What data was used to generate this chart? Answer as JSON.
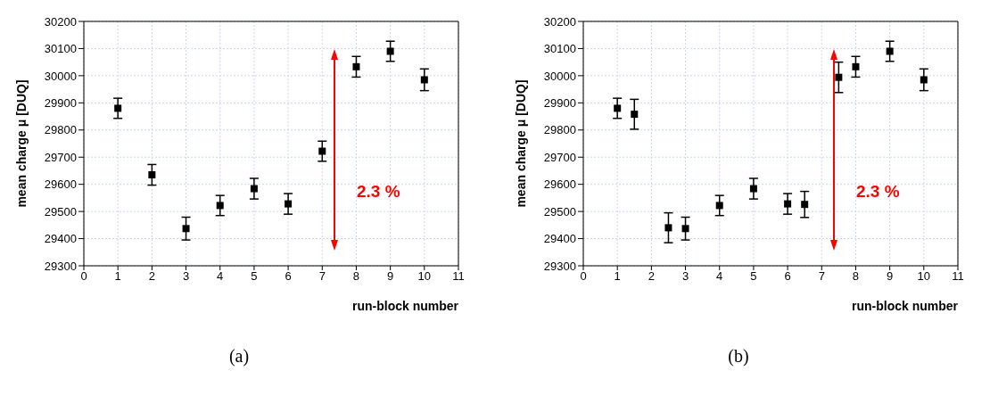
{
  "chart_data": [
    {
      "type": "scatter",
      "xlabel": "run-block number",
      "ylabel": "mean charge μ [DUQ]",
      "xlim": [
        0,
        11
      ],
      "xticks": [
        0,
        1,
        2,
        3,
        4,
        5,
        6,
        7,
        8,
        9,
        10,
        11
      ],
      "ylim": [
        29300,
        30200
      ],
      "yticks": [
        29300,
        29400,
        29500,
        29600,
        29700,
        29800,
        29900,
        30000,
        30100,
        30200
      ],
      "grid": true,
      "marker": "square",
      "series": [
        {
          "color": "#000000",
          "x": [
            1,
            2,
            3,
            4,
            5,
            6,
            7,
            8,
            9,
            10
          ],
          "values": [
            29880,
            29635,
            29437,
            29522,
            29584,
            29528,
            29722,
            30033,
            30090,
            29985
          ],
          "errors": [
            37,
            38,
            42,
            37,
            38,
            38,
            37,
            38,
            37,
            40
          ]
        }
      ],
      "annotations": [
        "2.3 %",
        "(a)"
      ]
    },
    {
      "type": "scatter",
      "xlabel": "run-block number",
      "ylabel": "mean charge μ [DUQ]",
      "xlim": [
        0,
        11
      ],
      "xticks": [
        0,
        1,
        2,
        3,
        4,
        5,
        6,
        7,
        8,
        9,
        10,
        11
      ],
      "ylim": [
        29300,
        30200
      ],
      "yticks": [
        29300,
        29400,
        29500,
        29600,
        29700,
        29800,
        29900,
        30000,
        30100,
        30200
      ],
      "grid": true,
      "marker": "square",
      "series": [
        {
          "color": "#000000",
          "x": [
            1,
            1.5,
            2.5,
            3,
            4,
            5,
            6,
            6.5,
            7.5,
            8,
            9,
            10
          ],
          "values": [
            29880,
            29858,
            29440,
            29437,
            29522,
            29584,
            29528,
            29526,
            29994,
            30033,
            30090,
            29985
          ],
          "errors": [
            37,
            55,
            55,
            42,
            37,
            38,
            38,
            48,
            56,
            38,
            37,
            40
          ]
        }
      ],
      "annotations": [
        "2.3 %",
        "(b)"
      ]
    }
  ]
}
